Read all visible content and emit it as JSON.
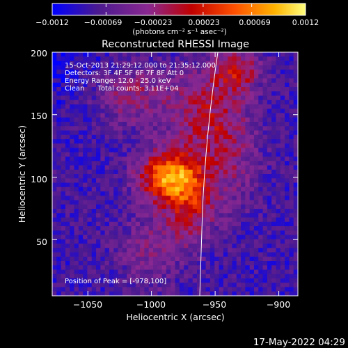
{
  "chart_data": {
    "type": "heatmap",
    "title": "Reconstructed RHESSI Image",
    "xlabel": "Heliocentric X (arcsec)",
    "ylabel": "Heliocentric Y (arcsec)",
    "xlim": [
      -1078,
      -885
    ],
    "ylim": [
      5,
      200
    ],
    "x_ticks": [
      -1050,
      -1000,
      -950,
      -900
    ],
    "x_tick_labels": [
      "−1050",
      "−1000",
      "−950",
      "−900"
    ],
    "y_ticks": [
      50,
      100,
      150,
      200
    ],
    "y_tick_labels": [
      "50",
      "100",
      "150",
      "200"
    ],
    "colorbar": {
      "range": [
        -0.0012,
        0.0012
      ],
      "ticks": [
        -0.0012,
        -0.00069,
        -0.00023,
        0.00023,
        0.00069,
        0.0012
      ],
      "tick_labels": [
        "−0.0012",
        "−0.00069",
        "−0.00023",
        "0.00023",
        "0.00069",
        "0.0012"
      ],
      "label": "(photons cm⁻² s⁻¹ asec⁻²)",
      "colors": [
        "#0000ff",
        "#4b1a90",
        "#8a2890",
        "#c00000",
        "#ff5000",
        "#ffb400",
        "#ffff80"
      ]
    },
    "annotations": [
      "15-Oct-2013 21:29:12.000 to 21:35:12.000",
      "Detectors: 3F 4F 5F 6F 7F 8F Att 0",
      "Energy Range: 12.0 - 25.0 keV",
      "Clean      Total counts: 3.11E+04"
    ],
    "peak_label": "Position of Peak = [-978,100]",
    "peak": [
      -978,
      100
    ],
    "grid": false
  },
  "footer": {
    "date": "17-May-2022 04:29"
  }
}
